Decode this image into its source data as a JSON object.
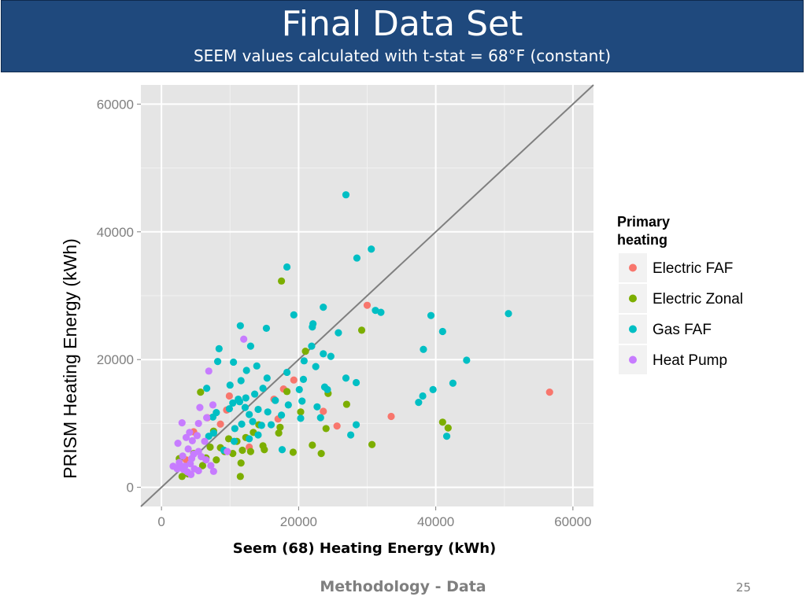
{
  "slide": {
    "title": "Final Data Set",
    "subtitle": "SEEM values calculated with t-stat = 68°F (constant)",
    "footer": "Methodology - Data",
    "page_number": "25"
  },
  "colors": {
    "header_bg": "#1f497d",
    "panel_bg": "#e5e5e5",
    "grid": "#ffffff",
    "reference_line": "#7f7f7f"
  },
  "chart_data": {
    "type": "scatter",
    "xlabel": "Seem (68) Heating Energy (kWh)",
    "ylabel": "PRISM Heating Energy (kWh)",
    "xlim": [
      -3000,
      63000
    ],
    "ylim": [
      -3000,
      63000
    ],
    "x_ticks": [
      0,
      20000,
      40000,
      60000
    ],
    "y_ticks": [
      0,
      20000,
      40000,
      60000
    ],
    "x_tick_labels": [
      "0",
      "20000",
      "40000",
      "60000"
    ],
    "y_tick_labels": [
      "0",
      "20000",
      "40000",
      "60000"
    ],
    "reference_line": "y = x",
    "legend": {
      "title": "Primary heating",
      "title_lines": [
        "Primary",
        "heating"
      ],
      "placement": "right"
    },
    "series": [
      {
        "name": "Electric FAF",
        "color": "#F8766D",
        "points": [
          [
            56600,
            14900
          ],
          [
            30000,
            28500
          ],
          [
            33500,
            11100
          ],
          [
            25600,
            9600
          ],
          [
            23600,
            11900
          ],
          [
            19300,
            16800
          ],
          [
            17800,
            15400
          ],
          [
            17000,
            10700
          ],
          [
            16400,
            13800
          ],
          [
            9900,
            14300
          ],
          [
            9500,
            12100
          ],
          [
            8600,
            9900
          ],
          [
            6700,
            10900
          ],
          [
            4700,
            8700
          ],
          [
            3600,
            4300
          ],
          [
            12800,
            6300
          ]
        ]
      },
      {
        "name": "Electric Zonal",
        "color": "#7CAE00",
        "points": [
          [
            17500,
            32300
          ],
          [
            29200,
            24600
          ],
          [
            21000,
            21300
          ],
          [
            41000,
            10200
          ],
          [
            41800,
            9300
          ],
          [
            27000,
            13000
          ],
          [
            30700,
            6700
          ],
          [
            23300,
            5300
          ],
          [
            22000,
            6600
          ],
          [
            24000,
            9200
          ],
          [
            24300,
            14700
          ],
          [
            20300,
            11800
          ],
          [
            18300,
            15000
          ],
          [
            19200,
            5500
          ],
          [
            17300,
            9400
          ],
          [
            17100,
            8500
          ],
          [
            15000,
            5900
          ],
          [
            14800,
            6500
          ],
          [
            13400,
            8600
          ],
          [
            13000,
            5600
          ],
          [
            12300,
            7800
          ],
          [
            11800,
            5800
          ],
          [
            11600,
            3800
          ],
          [
            11500,
            1700
          ],
          [
            11000,
            7200
          ],
          [
            10400,
            5300
          ],
          [
            9800,
            7600
          ],
          [
            9200,
            5600
          ],
          [
            8600,
            6200
          ],
          [
            8000,
            4300
          ],
          [
            7600,
            8800
          ],
          [
            7100,
            6300
          ],
          [
            6500,
            4600
          ],
          [
            6000,
            3400
          ],
          [
            5700,
            14900
          ],
          [
            4700,
            5300
          ],
          [
            3900,
            2100
          ],
          [
            3000,
            1700
          ],
          [
            2600,
            4500
          ],
          [
            14200,
            9800
          ]
        ]
      },
      {
        "name": "Gas FAF",
        "color": "#00BFC4",
        "points": [
          [
            26900,
            45800
          ],
          [
            30600,
            37300
          ],
          [
            28500,
            35900
          ],
          [
            18300,
            34500
          ],
          [
            23600,
            28200
          ],
          [
            31200,
            27700
          ],
          [
            32000,
            27400
          ],
          [
            19300,
            27000
          ],
          [
            39300,
            26900
          ],
          [
            50600,
            27200
          ],
          [
            22100,
            25600
          ],
          [
            22000,
            25100
          ],
          [
            15300,
            24900
          ],
          [
            11500,
            25300
          ],
          [
            41000,
            24400
          ],
          [
            25800,
            24200
          ],
          [
            38200,
            21600
          ],
          [
            21900,
            22100
          ],
          [
            13000,
            22100
          ],
          [
            8400,
            21700
          ],
          [
            23600,
            20900
          ],
          [
            24700,
            20500
          ],
          [
            20800,
            19800
          ],
          [
            44500,
            19900
          ],
          [
            13900,
            19000
          ],
          [
            10500,
            19600
          ],
          [
            8200,
            19700
          ],
          [
            18300,
            18000
          ],
          [
            22500,
            18900
          ],
          [
            12400,
            18300
          ],
          [
            26900,
            17100
          ],
          [
            15400,
            17100
          ],
          [
            20700,
            16900
          ],
          [
            28400,
            16400
          ],
          [
            42500,
            16300
          ],
          [
            11600,
            16700
          ],
          [
            10000,
            16000
          ],
          [
            23800,
            15700
          ],
          [
            24200,
            15300
          ],
          [
            14800,
            15500
          ],
          [
            20100,
            15300
          ],
          [
            39600,
            15300
          ],
          [
            38100,
            14300
          ],
          [
            13600,
            14600
          ],
          [
            12300,
            14000
          ],
          [
            11200,
            13800
          ],
          [
            37500,
            13300
          ],
          [
            16600,
            13600
          ],
          [
            20500,
            13500
          ],
          [
            10400,
            13200
          ],
          [
            18500,
            12900
          ],
          [
            14100,
            12200
          ],
          [
            12200,
            12500
          ],
          [
            17500,
            11300
          ],
          [
            9900,
            12300
          ],
          [
            15500,
            11800
          ],
          [
            8000,
            11700
          ],
          [
            22700,
            12600
          ],
          [
            23200,
            10900
          ],
          [
            20300,
            10800
          ],
          [
            7500,
            11000
          ],
          [
            13300,
            10300
          ],
          [
            28400,
            9800
          ],
          [
            16000,
            9800
          ],
          [
            14600,
            9700
          ],
          [
            11700,
            9900
          ],
          [
            10700,
            9200
          ],
          [
            7600,
            8500
          ],
          [
            6900,
            8000
          ],
          [
            41600,
            8000
          ],
          [
            27600,
            8200
          ],
          [
            14100,
            8200
          ],
          [
            12800,
            7600
          ],
          [
            10600,
            7200
          ],
          [
            17600,
            5900
          ],
          [
            9100,
            5800
          ],
          [
            6600,
            15500
          ],
          [
            11400,
            13400
          ],
          [
            12800,
            11400
          ]
        ]
      },
      {
        "name": "Heat Pump",
        "color": "#C77CFF",
        "points": [
          [
            12000,
            23200
          ],
          [
            6900,
            18200
          ],
          [
            6600,
            10900
          ],
          [
            5600,
            12500
          ],
          [
            5400,
            10000
          ],
          [
            3000,
            10100
          ],
          [
            4100,
            8600
          ],
          [
            3600,
            7800
          ],
          [
            2400,
            6900
          ],
          [
            5200,
            8100
          ],
          [
            7500,
            12900
          ],
          [
            6300,
            7200
          ],
          [
            4500,
            7300
          ],
          [
            3900,
            6000
          ],
          [
            5400,
            5600
          ],
          [
            4700,
            5200
          ],
          [
            3100,
            4900
          ],
          [
            4400,
            4500
          ],
          [
            2600,
            3900
          ],
          [
            1700,
            3300
          ],
          [
            2700,
            3500
          ],
          [
            3400,
            3300
          ],
          [
            4200,
            3700
          ],
          [
            4800,
            2900
          ],
          [
            3800,
            2400
          ],
          [
            3200,
            2800
          ],
          [
            5400,
            2600
          ],
          [
            4300,
            2000
          ],
          [
            7600,
            2500
          ],
          [
            2300,
            2900
          ],
          [
            6500,
            4300
          ],
          [
            5800,
            4800
          ],
          [
            9600,
            5600
          ],
          [
            7200,
            3400
          ]
        ]
      }
    ]
  }
}
